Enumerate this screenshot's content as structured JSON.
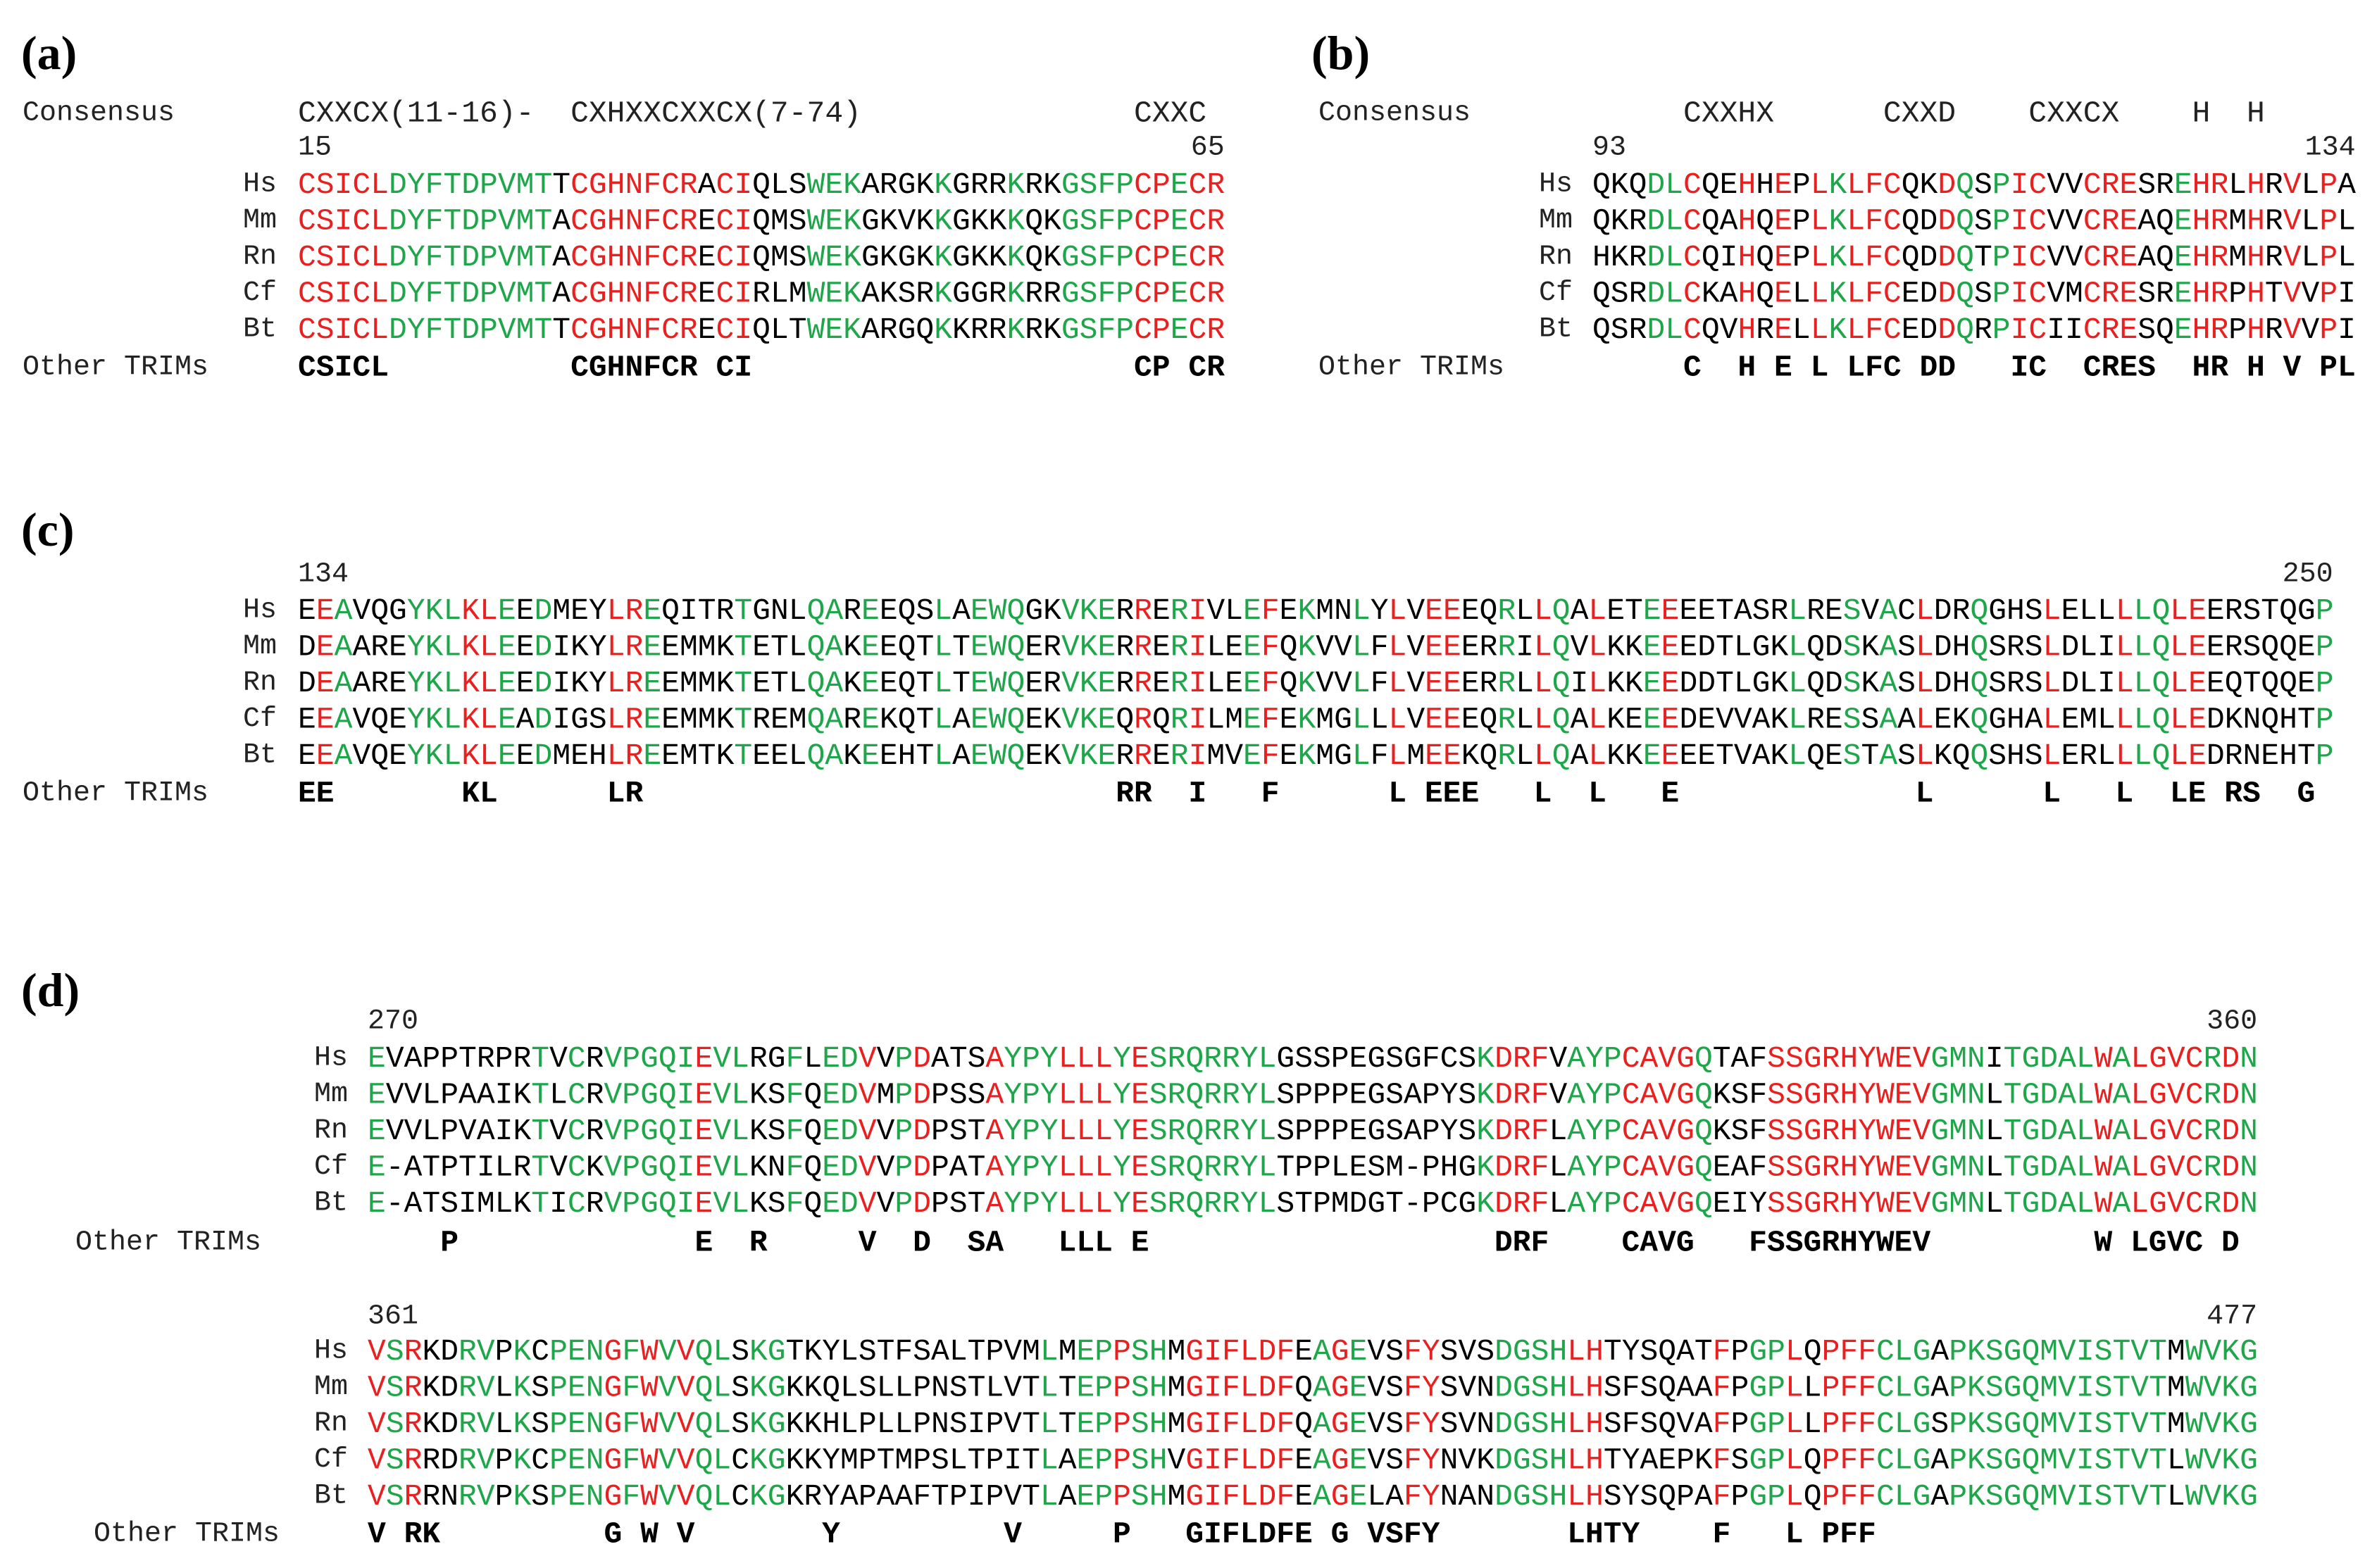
{
  "colors": {
    "conserved_in_trims": "#e8201f",
    "conserved_in_species": "#1fa64a",
    "variable": "#000000"
  },
  "panels": [
    {
      "label": "(a)",
      "consensus_label": "Consensus",
      "consensus": "CXXCX(11-16)-  CXHXXCXXCX(7-74)               CXXC",
      "blocks": [
        {
          "start": 15,
          "end": 65,
          "rows": [
            {
              "species": "Hs",
              "sequence": "CSICLDYFTDPVMTTCGHNFCRACIQLSWEKARGKKGRRKRKGSFPCPECR"
            },
            {
              "species": "Mm",
              "sequence": "CSICLDYFTDPVMTACGHNFCRECIQMSWEKGKVKKGKKKQKGSFPCPECR"
            },
            {
              "species": "Rn",
              "sequence": "CSICLDYFTDPVMTACGHNFCRECIQMSWEKGKGKKGKKKQKGSFPCPECR"
            },
            {
              "species": "Cf",
              "sequence": "CSICLDYFTDPVMTACGHNFCRECIRLMWEKAKSRKGGRKRRGSFPCPECR"
            },
            {
              "species": "Bt",
              "sequence": "CSICLDYFTDPVMTTCGHNFCRECIQLTWEKARGQKKRRKRKGSFPCPECR"
            }
          ],
          "other_label": "Other TRIMs",
          "other": "CSICL          CGHNFCR CI                     CP CR"
        }
      ]
    },
    {
      "label": "(b)",
      "consensus_label": "Consensus",
      "consensus": "     CXXHX      CXXD    CXXCX    H  H",
      "blocks": [
        {
          "start": 93,
          "end": 134,
          "rows": [
            {
              "species": "Hs",
              "sequence": "QKQDLCQEHHEPLKLFCQKDQSPICVVCRESREHRLHRVLPA"
            },
            {
              "species": "Mm",
              "sequence": "QKRDLCQAHQEPLKLFCQDDQSPICVVCREAQEHRMHRVLPL"
            },
            {
              "species": "Rn",
              "sequence": "HKRDLCQIHQEPLKLFCQDDQTPICVVCREAQEHRMHRVLPL"
            },
            {
              "species": "Cf",
              "sequence": "QSRDLCKAHQELLKLFCEDDQSPICVMCRESREHRPHTVVPI"
            },
            {
              "species": "Bt",
              "sequence": "QSRDLCQVHRELLKLFCEDDQRPICIICRESQEHRPHRVVPI"
            }
          ],
          "other_label": "Other TRIMs",
          "other": "     C  H E L LFC DD   IC  CRES  HR H V PL"
        }
      ]
    },
    {
      "label": "(c)",
      "blocks": [
        {
          "start": 134,
          "end": 250,
          "rows": [
            {
              "species": "Hs",
              "sequence": "EEAVQGYKLKLEEDMEYLREQITRTGNLQAREEQSLAEWQGKVKERRERIVLEFEKMNLYLVEEEQRLLQALETEEEETASRLRESVACLDRQGHSLELLLLQLEERSTQGP"
            },
            {
              "species": "Mm",
              "sequence": "DEAAREYKLKLEEDIKYLREEMMKTETLQAKEEQTLTEWQERVKERRERILEEFQKVVLFLVEEERRILQVLKKEEEDTLGKLQDSKASLDHQSRSLDLILLQLEERSQQEP"
            },
            {
              "species": "Rn",
              "sequence": "DEAAREYKLKLEEDIKYLREEMMKTETLQAKEEQTLTEWQERVKERRERILEEFQKVVLFLVEEERRLLQILKKEEDDTLGKLQDSKASLDHQSRSLDLILLQLEEQTQQEP"
            },
            {
              "species": "Cf",
              "sequence": "EEAVQEYKLKLEADIGSLREEMMKTREMQAREKQTLAEWQEKVKEQRQRILMEFEKMGLLLVEEEQRLLQALKEEEDEVVAKLRESSAALEKQGHALEMLLLQLEDKNQHTP"
            },
            {
              "species": "Bt",
              "sequence": "EEAVQEYKLKLEEDMEHLREEMTKTEELQAKEEHTLAEWQEKVKERRERIMVEFEKMGLFLMEEKQRLLQALKKEEEETVAKLQESTASLKQQSHSLERLLLQLEDRNEHTP"
            }
          ],
          "other_label": "Other TRIMs",
          "other": "EE       KL      LR                          RR  I   F      L EEE   L  L   E             L      L   L  LE RS  G"
        }
      ]
    },
    {
      "label": "(d)",
      "blocks": [
        {
          "start": 270,
          "end": 360,
          "rows": [
            {
              "species": "Hs",
              "sequence": "EVAPPTRPRTVCRVPGQIEVLRGFLEDVVPDATSAYPYLLLYESRQRRYLGSSPEGSGFCSKDRFVAYPCAVGQTAFSSGRHYWEVGMNITGDALWALGVCRDN"
            },
            {
              "species": "Mm",
              "sequence": "EVVLPAAIKTLCRVPGQIEVLKSFQEDVMPDPSSAYPYLLLYESRQRRYLSPPPEGSAPYSKDRFVAYPCAVGQKSFSSGRHYWEVGMNLTGDALWALGVCRDN"
            },
            {
              "species": "Rn",
              "sequence": "EVVLPVAIKTVCRVPGQIEVLKSFQEDVVPDPSTAYPYLLLYESRQRRYLSPPPEGSAPYSKDRFLAYPCAVGQKSFSSGRHYWEVGMNLTGDALWALGVCRDN"
            },
            {
              "species": "Cf",
              "sequence": "E-ATPTILRTVCKVPGQIEVLKNFQEDVVPDPATAYPYLLLYESRQRRYLTPPLESM-PHGKDRFLAYPCAVGQEAFSSGRHYWEVGMNLTGDALWALGVCRDN"
            },
            {
              "species": "Bt",
              "sequence": "E-ATSIMLKTICRVPGQIEVLKSFQEDVVPDPSTAYPYLLLYESRQRRYLSTPMDGT-PCGKDRFLAYPCAVGQEIYSSGRHYWEVGMNLTGDALWALGVCRDN"
            }
          ],
          "other_label": "Other TRIMs",
          "other": "    P             E  R     V  D  SA   LLL E                   DRF    CAVG   FSSGRHYWEV         W LGVC D"
        },
        {
          "start": 361,
          "end": 477,
          "rows": [
            {
              "species": "Hs",
              "sequence": "VSRKDRVPKCPENGFWVVQLSKGTKYLSTFSALTPVMLMEPPSHMGIFLDFEAGEVSFYSVSDGSHLHTYSQATFPGPLQPFFCLGAPKSGQMVISTVTMWVKG"
            },
            {
              "species": "Mm",
              "sequence": "VSRKDRVLKSPENGFWVVQLSKGKKQLSLLPNSTLVTLTEPPSHMGIFLDFQAGEVSFYSVNDGSHLHSFSQAAFPGPLLPFFCLGAPKSGQMVISTVTMWVKG"
            },
            {
              "species": "Rn",
              "sequence": "VSRKDRVLKSPENGFWVVQLSKGKKHLPLLPNSIPVTLTEPPSHMGIFLDFQAGEVSFYSVNDGSHLHSFSQVAFPGPLLPFFCLGSPKSGQMVISTVTMWVKG"
            },
            {
              "species": "Cf",
              "sequence": "VSRRDRVPKCPENGFWVVQLCKGKKYMPTMPSLTPITLAEPPSHVGIFLDFEAGEVSFYNVKDGSHLHTYAEPKFSGPLQPFFCLGAPKSGQMVISTVTLWVKG"
            },
            {
              "species": "Bt",
              "sequence": "VSRRNRVPKSPENGFWVVQLCKGKRYAPAAFTPIPVTLAEPPSHMGIFLDFEAGELAFYNANDGSHLHSYSQPAFPGPLQPFFCLGAPKSGQMVISTVTLWVKG"
            }
          ],
          "other_label": "Other TRIMs",
          "other": "V RK         G W V       Y         V     P   GIFLDFE G VSFY       LHTY    F   L PFF"
        }
      ]
    }
  ]
}
